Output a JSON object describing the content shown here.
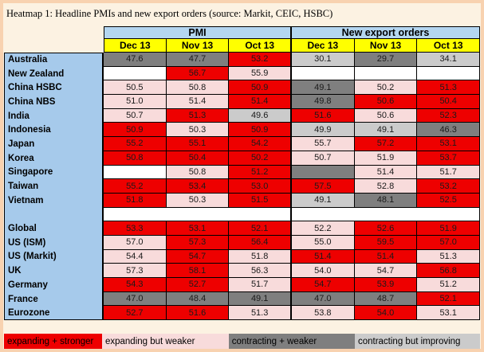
{
  "chart_data": {
    "type": "heatmap",
    "title": "Heatmap 1: Headline PMIs and new export orders (source: Markit, CEIC, HSBC)",
    "column_groups": [
      {
        "label": "PMI"
      },
      {
        "label": "New export orders"
      }
    ],
    "columns": [
      "Dec 13",
      "Nov 13",
      "Oct 13",
      "Dec 13",
      "Nov 13",
      "Oct 13"
    ],
    "rows": [
      {
        "label": "Australia",
        "cells": [
          {
            "v": "47.6",
            "c": "dgray"
          },
          {
            "v": "47.7",
            "c": "dgray"
          },
          {
            "v": "53.2",
            "c": "red"
          },
          {
            "v": "30.1",
            "c": "lgray"
          },
          {
            "v": "29.7",
            "c": "dgray"
          },
          {
            "v": "34.1",
            "c": "lgray"
          }
        ]
      },
      {
        "label": "New Zealand",
        "cells": [
          {
            "v": "",
            "c": "white"
          },
          {
            "v": "56.7",
            "c": "red"
          },
          {
            "v": "55.9",
            "c": "pink"
          },
          {
            "v": "",
            "c": "white"
          },
          {
            "v": "",
            "c": "white"
          },
          {
            "v": "",
            "c": "white"
          }
        ]
      },
      {
        "label": "China HSBC",
        "cells": [
          {
            "v": "50.5",
            "c": "pink"
          },
          {
            "v": "50.8",
            "c": "pink"
          },
          {
            "v": "50.9",
            "c": "red"
          },
          {
            "v": "49.1",
            "c": "dgray"
          },
          {
            "v": "50.2",
            "c": "pink"
          },
          {
            "v": "51.3",
            "c": "red"
          }
        ]
      },
      {
        "label": "China NBS",
        "cells": [
          {
            "v": "51.0",
            "c": "pink"
          },
          {
            "v": "51.4",
            "c": "pink"
          },
          {
            "v": "51.4",
            "c": "red"
          },
          {
            "v": "49.8",
            "c": "dgray"
          },
          {
            "v": "50.6",
            "c": "red"
          },
          {
            "v": "50.4",
            "c": "red"
          }
        ]
      },
      {
        "label": "India",
        "cells": [
          {
            "v": "50.7",
            "c": "pink"
          },
          {
            "v": "51.3",
            "c": "red"
          },
          {
            "v": "49.6",
            "c": "lgray"
          },
          {
            "v": "51.6",
            "c": "red"
          },
          {
            "v": "50.6",
            "c": "pink"
          },
          {
            "v": "52.3",
            "c": "red"
          }
        ]
      },
      {
        "label": "Indonesia",
        "cells": [
          {
            "v": "50.9",
            "c": "red"
          },
          {
            "v": "50.3",
            "c": "pink"
          },
          {
            "v": "50.9",
            "c": "red"
          },
          {
            "v": "49.9",
            "c": "lgray"
          },
          {
            "v": "49.1",
            "c": "lgray"
          },
          {
            "v": "46.3",
            "c": "dgray"
          }
        ]
      },
      {
        "label": "Japan",
        "cells": [
          {
            "v": "55.2",
            "c": "red"
          },
          {
            "v": "55.1",
            "c": "red"
          },
          {
            "v": "54.2",
            "c": "red"
          },
          {
            "v": "55.7",
            "c": "pink"
          },
          {
            "v": "57.2",
            "c": "red"
          },
          {
            "v": "53.1",
            "c": "red"
          }
        ]
      },
      {
        "label": "Korea",
        "cells": [
          {
            "v": "50.8",
            "c": "red"
          },
          {
            "v": "50.4",
            "c": "red"
          },
          {
            "v": "50.2",
            "c": "red"
          },
          {
            "v": "50.7",
            "c": "pink"
          },
          {
            "v": "51.9",
            "c": "pink"
          },
          {
            "v": "53.7",
            "c": "red"
          }
        ]
      },
      {
        "label": "Singapore",
        "cells": [
          {
            "v": "",
            "c": "white"
          },
          {
            "v": "50.8",
            "c": "pink"
          },
          {
            "v": "51.2",
            "c": "red"
          },
          {
            "v": "",
            "c": "dgray"
          },
          {
            "v": "51.4",
            "c": "pink"
          },
          {
            "v": "51.7",
            "c": "pink"
          }
        ]
      },
      {
        "label": "Taiwan",
        "cells": [
          {
            "v": "55.2",
            "c": "red"
          },
          {
            "v": "53.4",
            "c": "red"
          },
          {
            "v": "53.0",
            "c": "red"
          },
          {
            "v": "57.5",
            "c": "red"
          },
          {
            "v": "52.8",
            "c": "pink"
          },
          {
            "v": "53.2",
            "c": "red"
          }
        ]
      },
      {
        "label": "Vietnam",
        "cells": [
          {
            "v": "51.8",
            "c": "red"
          },
          {
            "v": "50.3",
            "c": "pink"
          },
          {
            "v": "51.5",
            "c": "red"
          },
          {
            "v": "49.1",
            "c": "lgray"
          },
          {
            "v": "48.1",
            "c": "dgray"
          },
          {
            "v": "52.5",
            "c": "red"
          }
        ]
      },
      {
        "label": "",
        "separator": true,
        "cells": []
      },
      {
        "label": "Global",
        "cells": [
          {
            "v": "53.3",
            "c": "red"
          },
          {
            "v": "53.1",
            "c": "red"
          },
          {
            "v": "52.1",
            "c": "red"
          },
          {
            "v": "52.2",
            "c": "pink"
          },
          {
            "v": "52.6",
            "c": "red"
          },
          {
            "v": "51.9",
            "c": "red"
          }
        ]
      },
      {
        "label": "US (ISM)",
        "cells": [
          {
            "v": "57.0",
            "c": "pink"
          },
          {
            "v": "57.3",
            "c": "red"
          },
          {
            "v": "56.4",
            "c": "red"
          },
          {
            "v": "55.0",
            "c": "pink"
          },
          {
            "v": "59.5",
            "c": "red"
          },
          {
            "v": "57.0",
            "c": "red"
          }
        ]
      },
      {
        "label": "US (Markit)",
        "cells": [
          {
            "v": "54.4",
            "c": "pink"
          },
          {
            "v": "54.7",
            "c": "red"
          },
          {
            "v": "51.8",
            "c": "pink"
          },
          {
            "v": "51.4",
            "c": "red"
          },
          {
            "v": "51.4",
            "c": "red"
          },
          {
            "v": "51.3",
            "c": "pink"
          }
        ]
      },
      {
        "label": "UK",
        "cells": [
          {
            "v": "57.3",
            "c": "pink"
          },
          {
            "v": "58.1",
            "c": "red"
          },
          {
            "v": "56.3",
            "c": "pink"
          },
          {
            "v": "54.0",
            "c": "pink"
          },
          {
            "v": "54.7",
            "c": "pink"
          },
          {
            "v": "56.8",
            "c": "red"
          }
        ]
      },
      {
        "label": "Germany",
        "cells": [
          {
            "v": "54.3",
            "c": "red"
          },
          {
            "v": "52.7",
            "c": "red"
          },
          {
            "v": "51.7",
            "c": "pink"
          },
          {
            "v": "54.7",
            "c": "red"
          },
          {
            "v": "53.9",
            "c": "red"
          },
          {
            "v": "51.2",
            "c": "pink"
          }
        ]
      },
      {
        "label": "France",
        "cells": [
          {
            "v": "47.0",
            "c": "dgray"
          },
          {
            "v": "48.4",
            "c": "dgray"
          },
          {
            "v": "49.1",
            "c": "dgray"
          },
          {
            "v": "47.0",
            "c": "dgray"
          },
          {
            "v": "48.7",
            "c": "dgray"
          },
          {
            "v": "52.1",
            "c": "red"
          }
        ]
      },
      {
        "label": "Eurozone",
        "cells": [
          {
            "v": "52.7",
            "c": "red"
          },
          {
            "v": "51.6",
            "c": "red"
          },
          {
            "v": "51.3",
            "c": "pink"
          },
          {
            "v": "53.8",
            "c": "pink"
          },
          {
            "v": "54.0",
            "c": "red"
          },
          {
            "v": "53.1",
            "c": "pink"
          }
        ]
      }
    ],
    "legend": [
      {
        "label": "expanding + stronger",
        "color_key": "red"
      },
      {
        "label": "expanding but weaker",
        "color_key": "pink"
      },
      {
        "label": "contracting + weaker",
        "color_key": "dgray"
      },
      {
        "label": "contracting but improving",
        "color_key": "lgray"
      }
    ],
    "colors": {
      "red": "#EE0000",
      "pink": "#F8DBDB",
      "dgray": "#7F7F7F",
      "lgray": "#CBCBCB",
      "white": "#FFFFFF",
      "label_blue": "#A6CAEB",
      "header_blue": "#B4D6F0",
      "month_yellow": "#FFFF00",
      "page_bg": "#FCF2E2",
      "page_border": "#F8D2B0"
    }
  }
}
